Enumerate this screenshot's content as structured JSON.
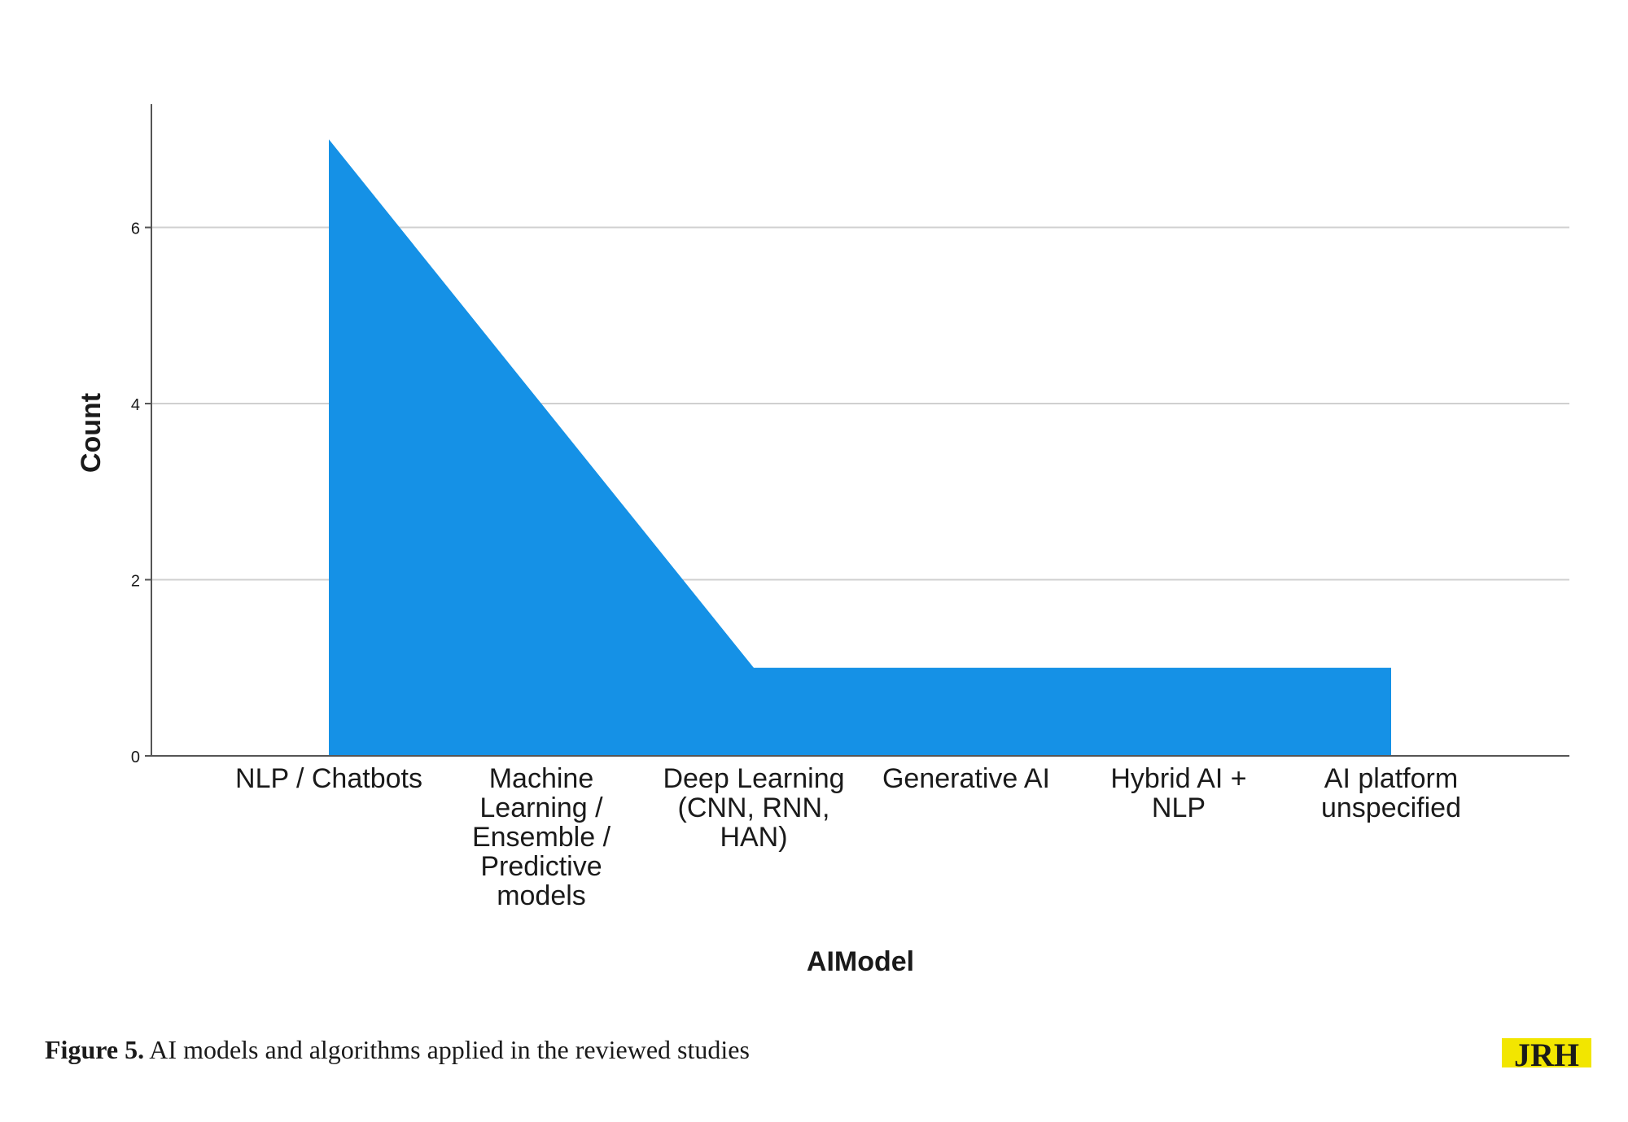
{
  "chart_data": {
    "type": "area",
    "categories": [
      "NLP / Chatbots",
      "Machine Learning / Ensemble / Predictive models",
      "Deep Learning (CNN, RNN, HAN)",
      "Generative AI",
      "Hybrid AI + NLP",
      "AI platform unspecified"
    ],
    "category_lines": [
      [
        "NLP / Chatbots"
      ],
      [
        "Machine",
        "Learning /",
        "Ensemble /",
        "Predictive",
        "models"
      ],
      [
        "Deep Learning",
        "(CNN, RNN,",
        "HAN)"
      ],
      [
        "Generative AI"
      ],
      [
        "Hybrid AI +",
        "NLP"
      ],
      [
        "AI platform",
        "unspecified"
      ]
    ],
    "values": [
      7,
      4,
      1,
      1,
      1,
      1
    ],
    "xlabel": "AIModel",
    "ylabel": "Count",
    "ylim": [
      0,
      7.4
    ],
    "yticks": [
      0,
      2,
      4,
      6
    ],
    "grid": true,
    "fill_color": "#1591e6",
    "grid_color": "#d0d0d0",
    "axis_color": "#555555"
  },
  "caption": {
    "label": "Figure 5.",
    "text": " AI models and algorithms applied in the reviewed studies"
  },
  "logo": {
    "text": "JRH",
    "color_primary": "#163a6b",
    "color_secondary": "#f2e600"
  }
}
